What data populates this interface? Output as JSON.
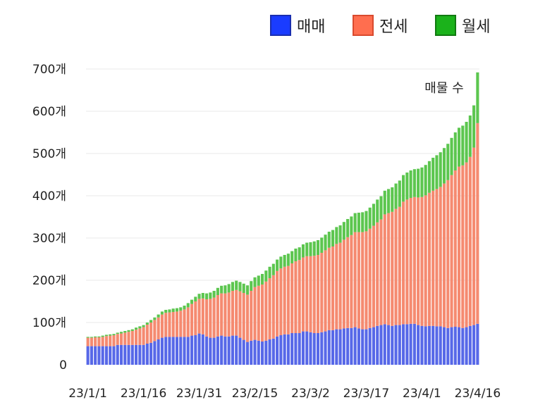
{
  "chart_data": {
    "type": "bar",
    "stacked": true,
    "title": "",
    "annotation": "매물 수",
    "ylim": [
      0,
      700
    ],
    "yticks": [
      {
        "value": 0,
        "label": "0"
      },
      {
        "value": 100,
        "label": "100개"
      },
      {
        "value": 200,
        "label": "200개"
      },
      {
        "value": 300,
        "label": "300개"
      },
      {
        "value": 400,
        "label": "400개"
      },
      {
        "value": 500,
        "label": "500개"
      },
      {
        "value": 600,
        "label": "600개"
      },
      {
        "value": 700,
        "label": "700개"
      }
    ],
    "xticks": [
      {
        "index": 0,
        "label": "23/1/1"
      },
      {
        "index": 15,
        "label": "23/1/16"
      },
      {
        "index": 30,
        "label": "23/1/31"
      },
      {
        "index": 45,
        "label": "23/2/15"
      },
      {
        "index": 60,
        "label": "23/3/2"
      },
      {
        "index": 75,
        "label": "23/3/17"
      },
      {
        "index": 90,
        "label": "23/4/1"
      },
      {
        "index": 105,
        "label": "23/4/16"
      }
    ],
    "legend": [
      {
        "name": "매매",
        "color": "#1a3cff",
        "border": "#1a2fb0"
      },
      {
        "name": "전세",
        "color": "#ff6e4f",
        "border": "#d94a2e"
      },
      {
        "name": "월세",
        "color": "#1bb21b",
        "border": "#117a11"
      }
    ],
    "colors": {
      "sale": "#5768e8",
      "jeonse": "#f58a70",
      "wolse": "#5cc64f"
    },
    "series": [
      {
        "name": "매매",
        "values": [
          44,
          44,
          44,
          44,
          44,
          44,
          44,
          44,
          47,
          47,
          47,
          47,
          47,
          47,
          47,
          47,
          50,
          52,
          56,
          60,
          64,
          66,
          66,
          66,
          66,
          66,
          66,
          66,
          69,
          70,
          74,
          72,
          67,
          64,
          64,
          67,
          69,
          67,
          67,
          69,
          69,
          64,
          59,
          54,
          57,
          59,
          57,
          55,
          57,
          60,
          62,
          67,
          70,
          72,
          72,
          75,
          75,
          75,
          79,
          79,
          77,
          75,
          75,
          77,
          79,
          82,
          82,
          84,
          84,
          86,
          87,
          87,
          89,
          86,
          84,
          84,
          87,
          89,
          92,
          94,
          96,
          94,
          92,
          94,
          94,
          96,
          96,
          97,
          97,
          94,
          92,
          91,
          92,
          92,
          91,
          91,
          89,
          87,
          89,
          90,
          89,
          87,
          89,
          92,
          94,
          97
        ]
      },
      {
        "name": "전세",
        "values": [
          20,
          20,
          21,
          21,
          22,
          24,
          25,
          26,
          26,
          27,
          29,
          31,
          33,
          36,
          39,
          42,
          45,
          48,
          50,
          52,
          55,
          57,
          58,
          59,
          60,
          62,
          65,
          70,
          75,
          80,
          82,
          85,
          88,
          92,
          95,
          98,
          100,
          102,
          104,
          106,
          108,
          110,
          111,
          112,
          118,
          125,
          130,
          135,
          140,
          145,
          150,
          155,
          158,
          160,
          162,
          165,
          170,
          173,
          175,
          178,
          180,
          183,
          185,
          188,
          192,
          195,
          198,
          202,
          205,
          210,
          215,
          220,
          225,
          228,
          230,
          232,
          235,
          240,
          245,
          250,
          260,
          265,
          270,
          275,
          280,
          290,
          295,
          298,
          300,
          302,
          305,
          310,
          315,
          320,
          325,
          330,
          340,
          350,
          360,
          370,
          380,
          385,
          390,
          400,
          420,
          475
        ]
      },
      {
        "name": "월세",
        "values": [
          2,
          2,
          2,
          2,
          3,
          3,
          3,
          3,
          3,
          4,
          4,
          4,
          4,
          5,
          5,
          5,
          5,
          6,
          6,
          7,
          7,
          7,
          7,
          8,
          8,
          8,
          9,
          10,
          10,
          11,
          12,
          13,
          14,
          15,
          16,
          17,
          18,
          19,
          20,
          21,
          22,
          22,
          22,
          22,
          23,
          23,
          24,
          25,
          26,
          27,
          27,
          27,
          28,
          28,
          29,
          29,
          30,
          30,
          31,
          32,
          33,
          34,
          35,
          36,
          37,
          38,
          39,
          40,
          41,
          42,
          43,
          44,
          45,
          46,
          47,
          48,
          50,
          52,
          54,
          55,
          56,
          57,
          58,
          60,
          62,
          63,
          64,
          65,
          66,
          68,
          70,
          72,
          75,
          78,
          80,
          82,
          84,
          86,
          88,
          90,
          92,
          94,
          96,
          98,
          100,
          120
        ]
      }
    ]
  }
}
